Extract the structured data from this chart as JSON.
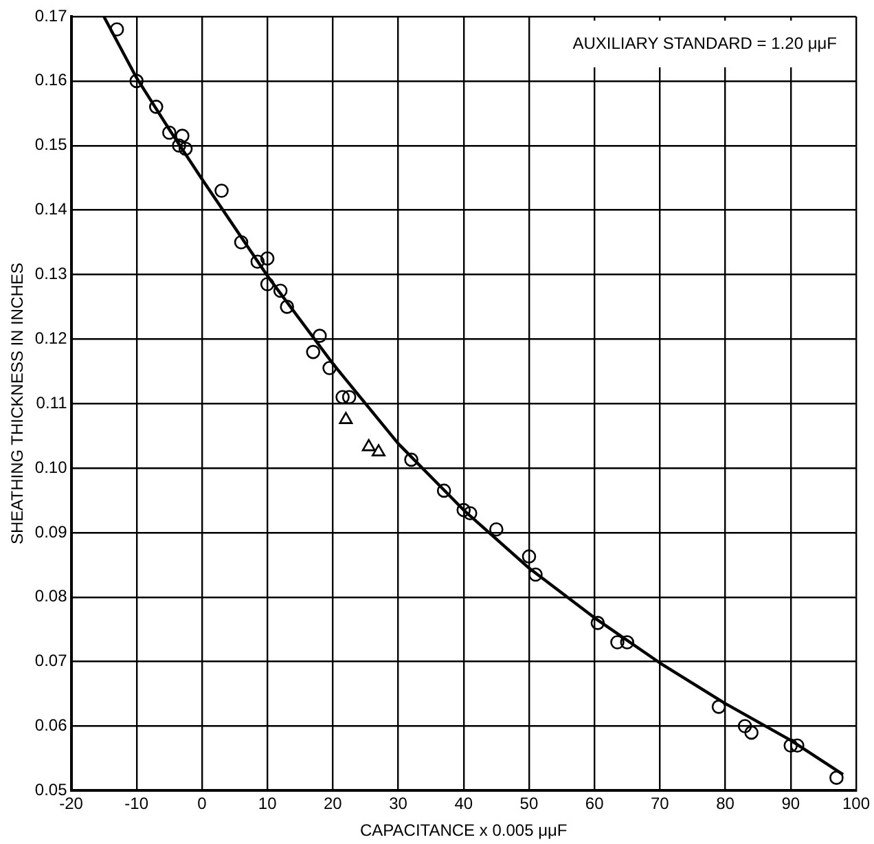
{
  "chart_data": {
    "type": "scatter",
    "xlabel": "CAPACITANCE x 0.005 μμF",
    "ylabel": "SHEATHING THICKNESS IN INCHES",
    "annotations": [
      "AUXILIARY STANDARD = 1.20 μμF"
    ],
    "xlim": [
      -20,
      100
    ],
    "xticks": [
      -20,
      -10,
      0,
      10,
      20,
      30,
      40,
      50,
      60,
      70,
      80,
      90,
      100
    ],
    "ylim": [
      0.05,
      0.17
    ],
    "yticks": [
      0.05,
      0.06,
      0.07,
      0.08,
      0.09,
      {
        "value": 0.1,
        "label": "0.10"
      },
      0.11,
      0.12,
      0.13,
      0.14,
      0.15,
      0.16,
      0.17
    ],
    "grid": true,
    "legend": false,
    "series": [
      {
        "type": "scatter",
        "marker": "circle",
        "color": "#000000",
        "x": [
          -13,
          -10,
          -7,
          -5,
          -3,
          -3.5,
          -2.5,
          3,
          6,
          8.5,
          10,
          10,
          12,
          13,
          17,
          18,
          19.5,
          21.5,
          22.5,
          32,
          37,
          40,
          41,
          45,
          50,
          51,
          60.5,
          63.5,
          65,
          79,
          83,
          84,
          90,
          91,
          97
        ],
        "values": [
          0.168,
          0.16,
          0.156,
          0.152,
          0.1515,
          0.15,
          0.1495,
          0.143,
          0.135,
          0.132,
          0.1325,
          0.1285,
          0.1275,
          0.125,
          0.118,
          0.1205,
          0.1155,
          0.111,
          0.111,
          0.1013,
          0.0965,
          0.0935,
          0.093,
          0.0905,
          0.0863,
          0.0835,
          0.076,
          0.073,
          0.073,
          0.063,
          0.06,
          0.059,
          0.057,
          0.057,
          0.052
        ]
      },
      {
        "type": "scatter",
        "marker": "triangle",
        "color": "#000000",
        "x": [
          22,
          25.5,
          27
        ],
        "values": [
          0.1075,
          0.1033,
          0.1025
        ]
      },
      {
        "type": "line",
        "marker": "none",
        "color": "#000000",
        "x": [
          -15,
          -10,
          -5,
          0,
          10,
          20,
          30,
          40,
          50,
          60,
          70,
          80,
          90,
          98
        ],
        "values": [
          0.17,
          0.1605,
          0.1525,
          0.1448,
          0.1298,
          0.1162,
          0.1038,
          0.0935,
          0.0845,
          0.0768,
          0.0698,
          0.0635,
          0.0578,
          0.0525
        ]
      }
    ]
  }
}
